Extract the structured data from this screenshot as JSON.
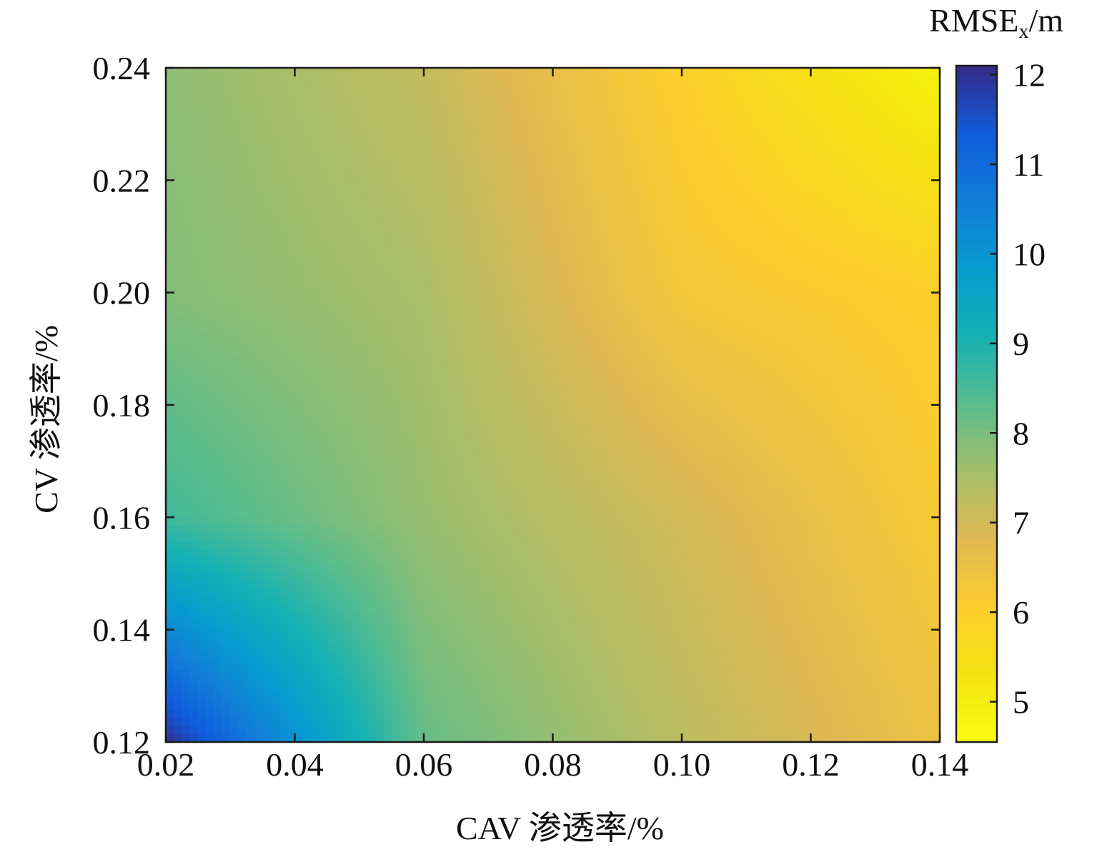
{
  "chart_data": {
    "type": "heatmap",
    "subtype": "filled-contour",
    "title": "",
    "xlabel": "CAV 渗透率/%",
    "ylabel": "CV 渗透率/%",
    "colorbar_label": "RMSE",
    "colorbar_label_subscript": "x",
    "colorbar_label_unit": "/m",
    "x": [
      0.02,
      0.06,
      0.1,
      0.14
    ],
    "y": [
      0.12,
      0.16,
      0.2,
      0.24
    ],
    "z": [
      [
        12.0,
        8.2,
        7.3,
        6.5
      ],
      [
        8.6,
        7.7,
        7.0,
        6.2
      ],
      [
        7.9,
        7.5,
        6.3,
        6.0
      ],
      [
        7.8,
        7.2,
        6.0,
        4.8
      ]
    ],
    "xlim": [
      0.02,
      0.14
    ],
    "ylim": [
      0.12,
      0.24
    ],
    "zlim": [
      4.55,
      12.1
    ],
    "x_ticks": [
      "0.02",
      "0.04",
      "0.06",
      "0.08",
      "0.10",
      "0.12",
      "0.14"
    ],
    "y_ticks": [
      "0.12",
      "0.14",
      "0.16",
      "0.18",
      "0.20",
      "0.22",
      "0.24"
    ],
    "colorbar_ticks": [
      "5",
      "6",
      "7",
      "8",
      "9",
      "10",
      "11",
      "12"
    ],
    "colormap": "parula",
    "grid": false,
    "colors": {
      "parula_low": "#352a87",
      "parula_high": "#f9fb0e",
      "frame": "#1a1a1a"
    }
  }
}
